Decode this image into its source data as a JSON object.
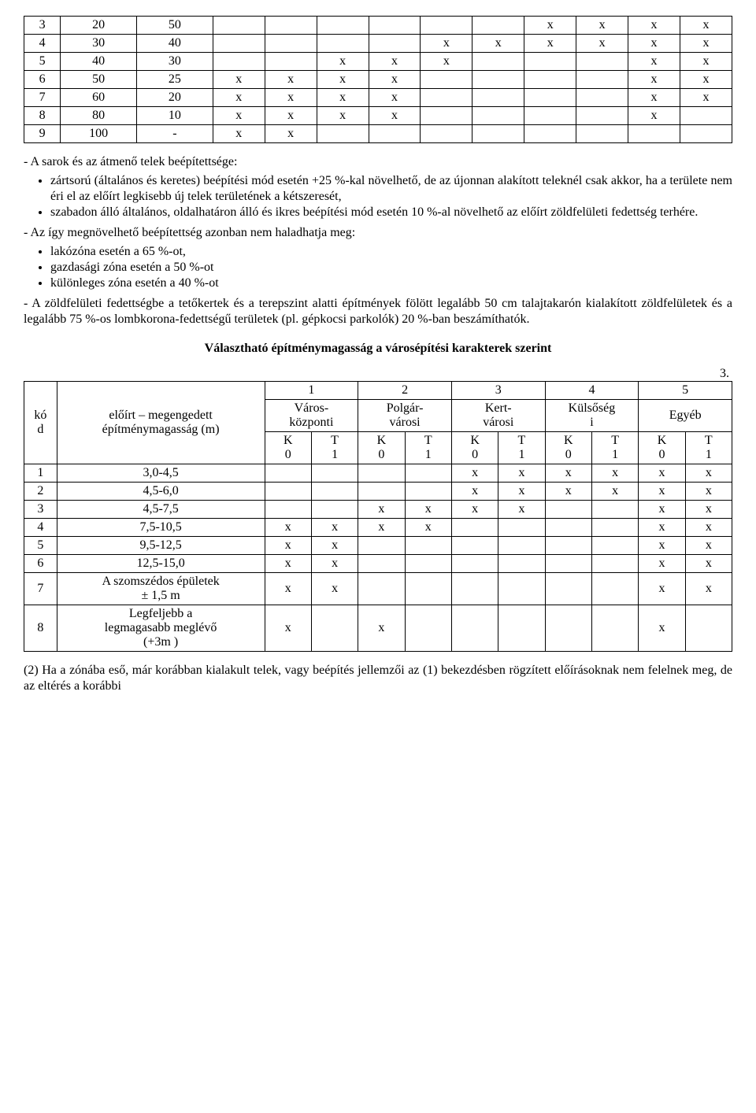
{
  "table1": {
    "col_widths": {
      "code": 24,
      "val": 60,
      "x": 38
    },
    "rows": [
      {
        "c": "3",
        "v1": "20",
        "v2": "50",
        "x": [
          "",
          "",
          "",
          "",
          "",
          "",
          "x",
          "x",
          "x",
          "x"
        ]
      },
      {
        "c": "4",
        "v1": "30",
        "v2": "40",
        "x": [
          "",
          "",
          "",
          "",
          "x",
          "x",
          "x",
          "x",
          "x",
          "x"
        ]
      },
      {
        "c": "5",
        "v1": "40",
        "v2": "30",
        "x": [
          "",
          "",
          "x",
          "x",
          "x",
          "",
          "",
          "",
          "x",
          "x"
        ]
      },
      {
        "c": "6",
        "v1": "50",
        "v2": "25",
        "x": [
          "x",
          "x",
          "x",
          "x",
          "",
          "",
          "",
          "",
          "x",
          "x"
        ]
      },
      {
        "c": "7",
        "v1": "60",
        "v2": "20",
        "x": [
          "x",
          "x",
          "x",
          "x",
          "",
          "",
          "",
          "",
          "x",
          "x"
        ]
      },
      {
        "c": "8",
        "v1": "80",
        "v2": "10",
        "x": [
          "x",
          "x",
          "x",
          "x",
          "",
          "",
          "",
          "",
          "x",
          ""
        ]
      },
      {
        "c": "9",
        "v1": "100",
        "v2": "-",
        "x": [
          "x",
          "x",
          "",
          "",
          "",
          "",
          "",
          "",
          "",
          ""
        ]
      }
    ]
  },
  "body": {
    "p_a": "- A sarok és az átmenő telek beépítettsége:",
    "b_a1": "zártsorú (általános és keretes) beépítési mód esetén +25 %-kal növelhető, de az újonnan alakított teleknél csak akkor, ha a területe nem éri el az előírt legkisebb új telek területének a kétszeresét,",
    "b_a2": "szabadon álló általános, oldalhatáron álló és ikres beépítési mód esetén 10 %-al növelhető az előírt zöldfelületi fedettség terhére.",
    "p_b": "- Az így megnövelhető beépítettség azonban nem haladhatja meg:",
    "b_b1": "lakózóna esetén a 65 %-ot,",
    "b_b2": "gazdasági zóna esetén a 50 %-ot",
    "b_b3": "különleges zóna esetén a 40 %-ot",
    "p_c": "- A zöldfelületi fedettségbe a tetőkertek és a terepszint alatti építmények fölött legalább 50 cm talajtakarón kialakított zöldfelületek és a legalább 75 %-os lombkorona-fedettségű területek (pl. gépkocsi parkolók) 20 %-ban beszámíthatók.",
    "title2": "Választható építménymagasság a városépítési karakterek szerint",
    "num3": "3."
  },
  "table2": {
    "header": {
      "kod": "kó\nd",
      "eloirt": "előírt – megengedett\népítménymagasság (m)",
      "groups": [
        {
          "n": "1",
          "name": "Város-\nközponti"
        },
        {
          "n": "2",
          "name": "Polgár-\nvárosi"
        },
        {
          "n": "3",
          "name": "Kert-\nvárosi"
        },
        {
          "n": "4",
          "name": "Külsőség\ni"
        },
        {
          "n": "5",
          "name": "Egyéb"
        }
      ],
      "sub": [
        "K\n0",
        "T\n1",
        "K\n0",
        "T\n1",
        "K\n0",
        "T\n1",
        "K\n0",
        "T\n1",
        "K\n0",
        "T\n1"
      ]
    },
    "rows": [
      {
        "c": "1",
        "label": "3,0-4,5",
        "x": [
          "",
          "",
          "",
          "",
          "x",
          "x",
          "x",
          "x",
          "x",
          "x"
        ]
      },
      {
        "c": "2",
        "label": "4,5-6,0",
        "x": [
          "",
          "",
          "",
          "",
          "x",
          "x",
          "x",
          "x",
          "x",
          "x"
        ]
      },
      {
        "c": "3",
        "label": "4,5-7,5",
        "x": [
          "",
          "",
          "x",
          "x",
          "x",
          "x",
          "",
          "",
          "x",
          "x"
        ]
      },
      {
        "c": "4",
        "label": "7,5-10,5",
        "x": [
          "x",
          "x",
          "x",
          "x",
          "",
          "",
          "",
          "",
          "x",
          "x"
        ]
      },
      {
        "c": "5",
        "label": "9,5-12,5",
        "x": [
          "x",
          "x",
          "",
          "",
          "",
          "",
          "",
          "",
          "x",
          "x"
        ]
      },
      {
        "c": "6",
        "label": "12,5-15,0",
        "x": [
          "x",
          "x",
          "",
          "",
          "",
          "",
          "",
          "",
          "x",
          "x"
        ]
      },
      {
        "c": "7",
        "label": "A szomszédos épületek\n± 1,5 m",
        "x": [
          "x",
          "x",
          "",
          "",
          "",
          "",
          "",
          "",
          "x",
          "x"
        ]
      },
      {
        "c": "8",
        "label": "Legfeljebb a\nlegmagasabb meglévő\n(+3m )",
        "x": [
          "x",
          "",
          "x",
          "",
          "",
          "",
          "",
          "",
          "x",
          ""
        ]
      }
    ]
  },
  "footer": {
    "p2": "(2) Ha a zónába eső, már korábban kialakult telek, vagy beépítés jellemzői az (1) bekezdésben rögzített előírásoknak nem felelnek meg, de az eltérés a korábbi"
  }
}
